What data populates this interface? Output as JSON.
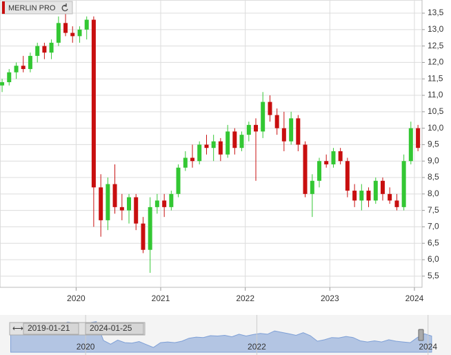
{
  "chart_data": {
    "type": "candlestick",
    "title": "MERLIN PRO",
    "x": [
      2019.125,
      2019.208,
      2019.292,
      2019.375,
      2019.458,
      2019.542,
      2019.625,
      2019.708,
      2019.792,
      2019.875,
      2019.958,
      2020.042,
      2020.125,
      2020.208,
      2020.292,
      2020.375,
      2020.458,
      2020.542,
      2020.625,
      2020.708,
      2020.792,
      2020.875,
      2020.958,
      2021.042,
      2021.125,
      2021.208,
      2021.292,
      2021.375,
      2021.458,
      2021.542,
      2021.625,
      2021.708,
      2021.792,
      2021.875,
      2021.958,
      2022.042,
      2022.125,
      2022.208,
      2022.292,
      2022.375,
      2022.458,
      2022.542,
      2022.625,
      2022.708,
      2022.792,
      2022.875,
      2022.958,
      2023.042,
      2023.125,
      2023.208,
      2023.292,
      2023.375,
      2023.458,
      2023.542,
      2023.625,
      2023.708,
      2023.792,
      2023.875,
      2023.958,
      2024.042
    ],
    "open": [
      11.3,
      11.4,
      11.7,
      11.9,
      11.8,
      12.2,
      12.5,
      12.3,
      12.6,
      13.2,
      12.9,
      12.8,
      13.0,
      13.3,
      8.2,
      7.2,
      8.3,
      7.6,
      7.5,
      7.9,
      7.1,
      6.3,
      7.6,
      7.8,
      7.6,
      8.0,
      8.8,
      9.1,
      9.0,
      9.5,
      9.4,
      9.6,
      9.2,
      9.9,
      9.4,
      9.8,
      10.1,
      9.9,
      10.8,
      10.4,
      10.0,
      9.6,
      10.3,
      9.5,
      8.0,
      8.4,
      9.0,
      8.9,
      9.3,
      9.0,
      8.1,
      7.8,
      8.1,
      7.8,
      8.4,
      8.0,
      7.8,
      7.6,
      9.0,
      10.0
    ],
    "high": [
      11.5,
      11.8,
      12.0,
      12.2,
      12.3,
      12.6,
      12.6,
      12.7,
      13.4,
      13.5,
      13.1,
      13.1,
      13.4,
      13.4,
      8.6,
      8.5,
      8.9,
      8.0,
      8.0,
      8.0,
      7.3,
      7.9,
      8.0,
      8.0,
      8.1,
      8.9,
      9.3,
      9.5,
      9.6,
      9.8,
      9.8,
      9.7,
      10.1,
      10.0,
      9.9,
      10.2,
      10.3,
      11.1,
      11.0,
      10.6,
      10.5,
      10.5,
      10.4,
      9.6,
      8.6,
      9.1,
      9.2,
      9.4,
      9.4,
      9.1,
      8.3,
      8.3,
      8.2,
      8.5,
      8.5,
      8.2,
      8.0,
      9.2,
      10.2,
      10.1
    ],
    "low": [
      11.1,
      11.3,
      11.5,
      11.7,
      11.7,
      12.0,
      12.1,
      12.1,
      12.5,
      12.8,
      12.6,
      12.6,
      12.7,
      7.0,
      6.7,
      6.9,
      7.4,
      7.2,
      7.1,
      6.9,
      6.2,
      5.6,
      7.4,
      7.3,
      7.5,
      7.9,
      8.7,
      8.8,
      8.9,
      9.2,
      9.0,
      9.0,
      9.1,
      9.2,
      9.3,
      9.6,
      8.4,
      9.7,
      10.2,
      9.8,
      9.3,
      9.5,
      9.3,
      7.9,
      7.3,
      8.2,
      8.8,
      8.8,
      8.9,
      7.9,
      7.6,
      7.5,
      7.6,
      7.7,
      7.8,
      7.7,
      7.5,
      7.5,
      8.9,
      9.3
    ],
    "close": [
      11.4,
      11.7,
      11.9,
      11.8,
      12.2,
      12.5,
      12.3,
      12.6,
      13.2,
      12.9,
      12.8,
      13.0,
      13.3,
      8.2,
      7.2,
      8.3,
      7.6,
      7.5,
      7.9,
      7.1,
      6.3,
      7.6,
      7.8,
      7.6,
      8.0,
      8.8,
      9.1,
      9.0,
      9.5,
      9.4,
      9.6,
      9.2,
      9.9,
      9.4,
      9.8,
      10.1,
      9.9,
      10.8,
      10.4,
      10.0,
      9.6,
      10.3,
      9.5,
      8.0,
      8.4,
      9.0,
      8.9,
      9.3,
      9.0,
      8.1,
      7.8,
      8.1,
      7.8,
      8.4,
      8.0,
      7.8,
      7.6,
      9.0,
      10.0,
      9.4
    ],
    "up_color": "#33c733",
    "down_color": "#c80f0f",
    "xlim": [
      2019.1,
      2024.09
    ],
    "xticks": [
      2020,
      2021,
      2022,
      2023,
      2024
    ],
    "ylim": [
      5.16,
      13.9
    ],
    "yticks": [
      {
        "value": 5.5,
        "label": "5,5"
      },
      {
        "value": 6,
        "label": "6,0"
      },
      {
        "value": 6.5,
        "label": "6,5"
      },
      {
        "value": 7,
        "label": "7,0"
      },
      {
        "value": 7.5,
        "label": "7,5"
      },
      {
        "value": 8,
        "label": "8,0"
      },
      {
        "value": 8.5,
        "label": "8,5"
      },
      {
        "value": 9,
        "label": "9,0"
      },
      {
        "value": 9.5,
        "label": "9,5"
      },
      {
        "value": 10,
        "label": "10,0"
      },
      {
        "value": 10.5,
        "label": "10,5"
      },
      {
        "value": 11,
        "label": "11,0"
      },
      {
        "value": 11.5,
        "label": "11,5"
      },
      {
        "value": 12,
        "label": "12,0"
      },
      {
        "value": 12.5,
        "label": "12,5"
      },
      {
        "value": 13,
        "label": "13,0"
      },
      {
        "value": 13.5,
        "label": "13,5"
      }
    ],
    "grid": true,
    "navigator": {
      "start_label": "2019-01-21",
      "end_label": "2024-01-25",
      "xlim": [
        2019.0,
        2024.22
      ],
      "ylim": [
        5,
        14
      ],
      "xticks": [
        2020,
        2022,
        2024
      ],
      "color": "#7d9fd6"
    }
  }
}
